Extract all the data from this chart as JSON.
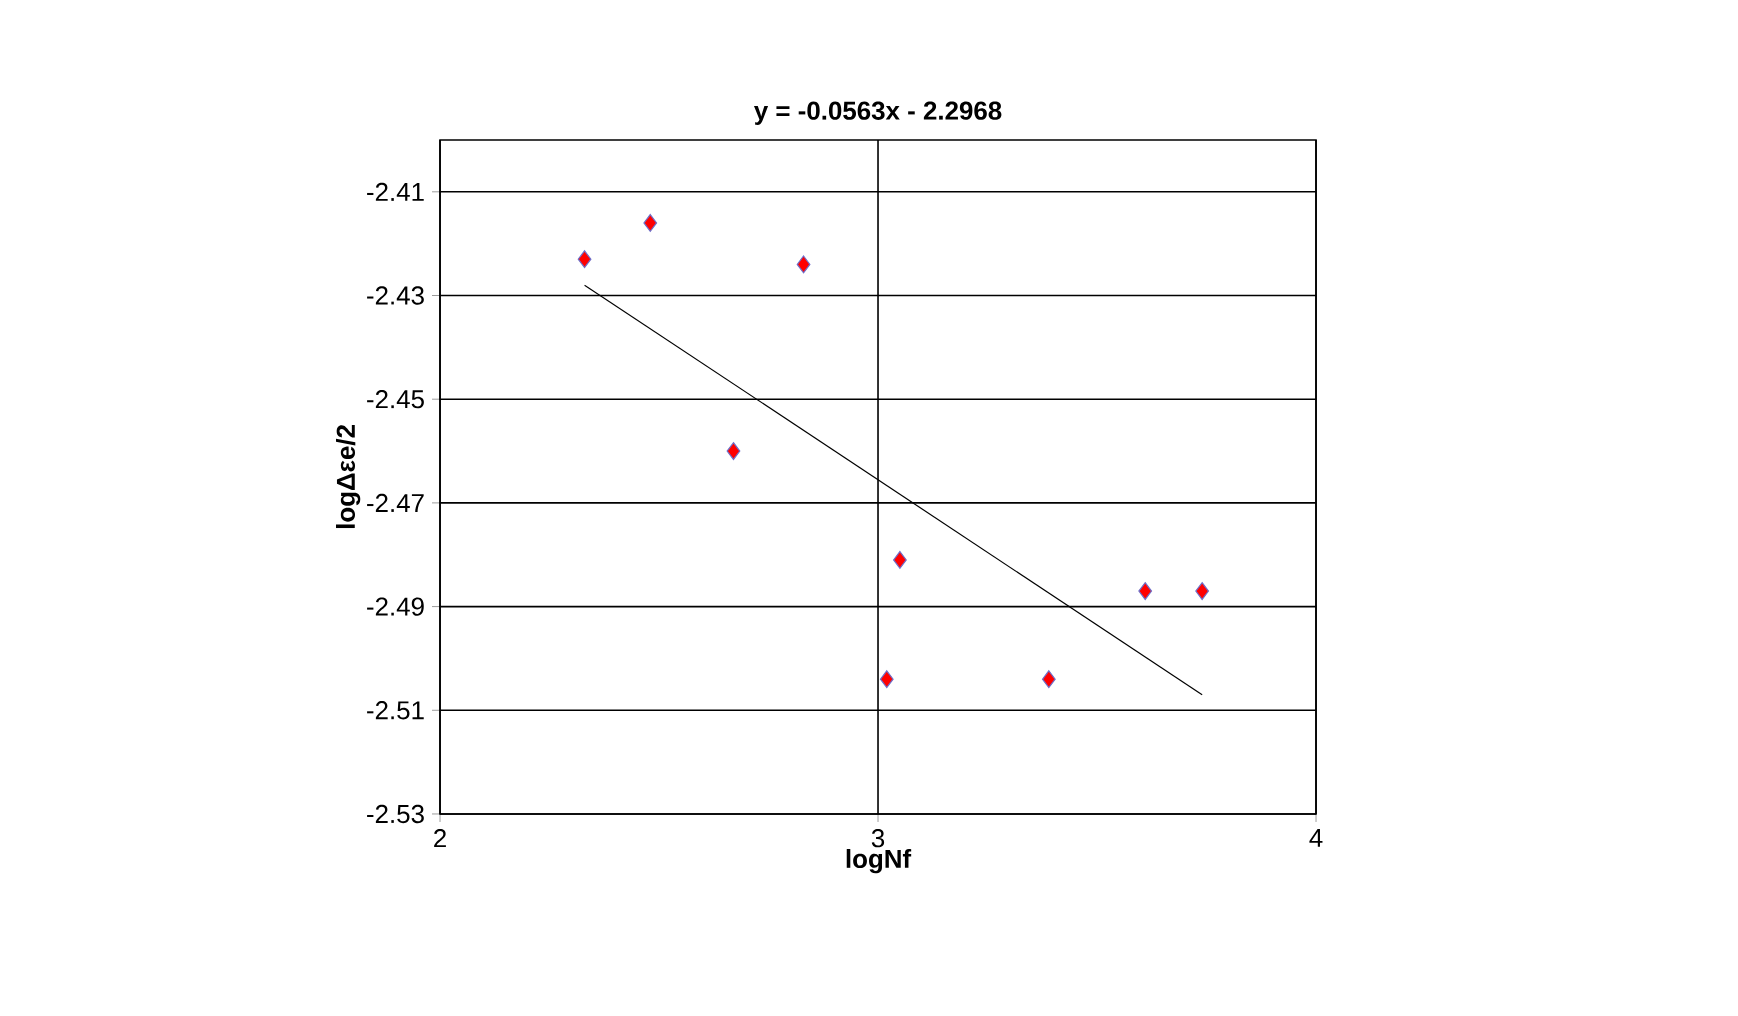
{
  "chart_data": {
    "type": "scatter",
    "title": "y = -0.0563x - 2.2968",
    "xlabel": "logNf",
    "ylabel": "logΔεe/2",
    "xlim": [
      2,
      4
    ],
    "ylim": [
      -2.53,
      -2.4
    ],
    "xticks": [
      2,
      3,
      4
    ],
    "yticks": [
      -2.53,
      -2.51,
      -2.49,
      -2.47,
      -2.45,
      -2.43,
      -2.41
    ],
    "grid": true,
    "series": [
      {
        "marker": "diamond",
        "color": "#ff0000",
        "x": [
          2.33,
          2.48,
          2.83,
          2.67,
          3.05,
          3.02,
          3.39,
          3.61,
          3.74
        ],
        "values": [
          -2.423,
          -2.416,
          -2.424,
          -2.46,
          -2.481,
          -2.504,
          -2.504,
          -2.487,
          -2.487
        ]
      },
      {
        "type": "line",
        "color": "#000000",
        "x": [
          2.33,
          3.74
        ],
        "values": [
          -2.428,
          -2.507
        ]
      }
    ]
  }
}
